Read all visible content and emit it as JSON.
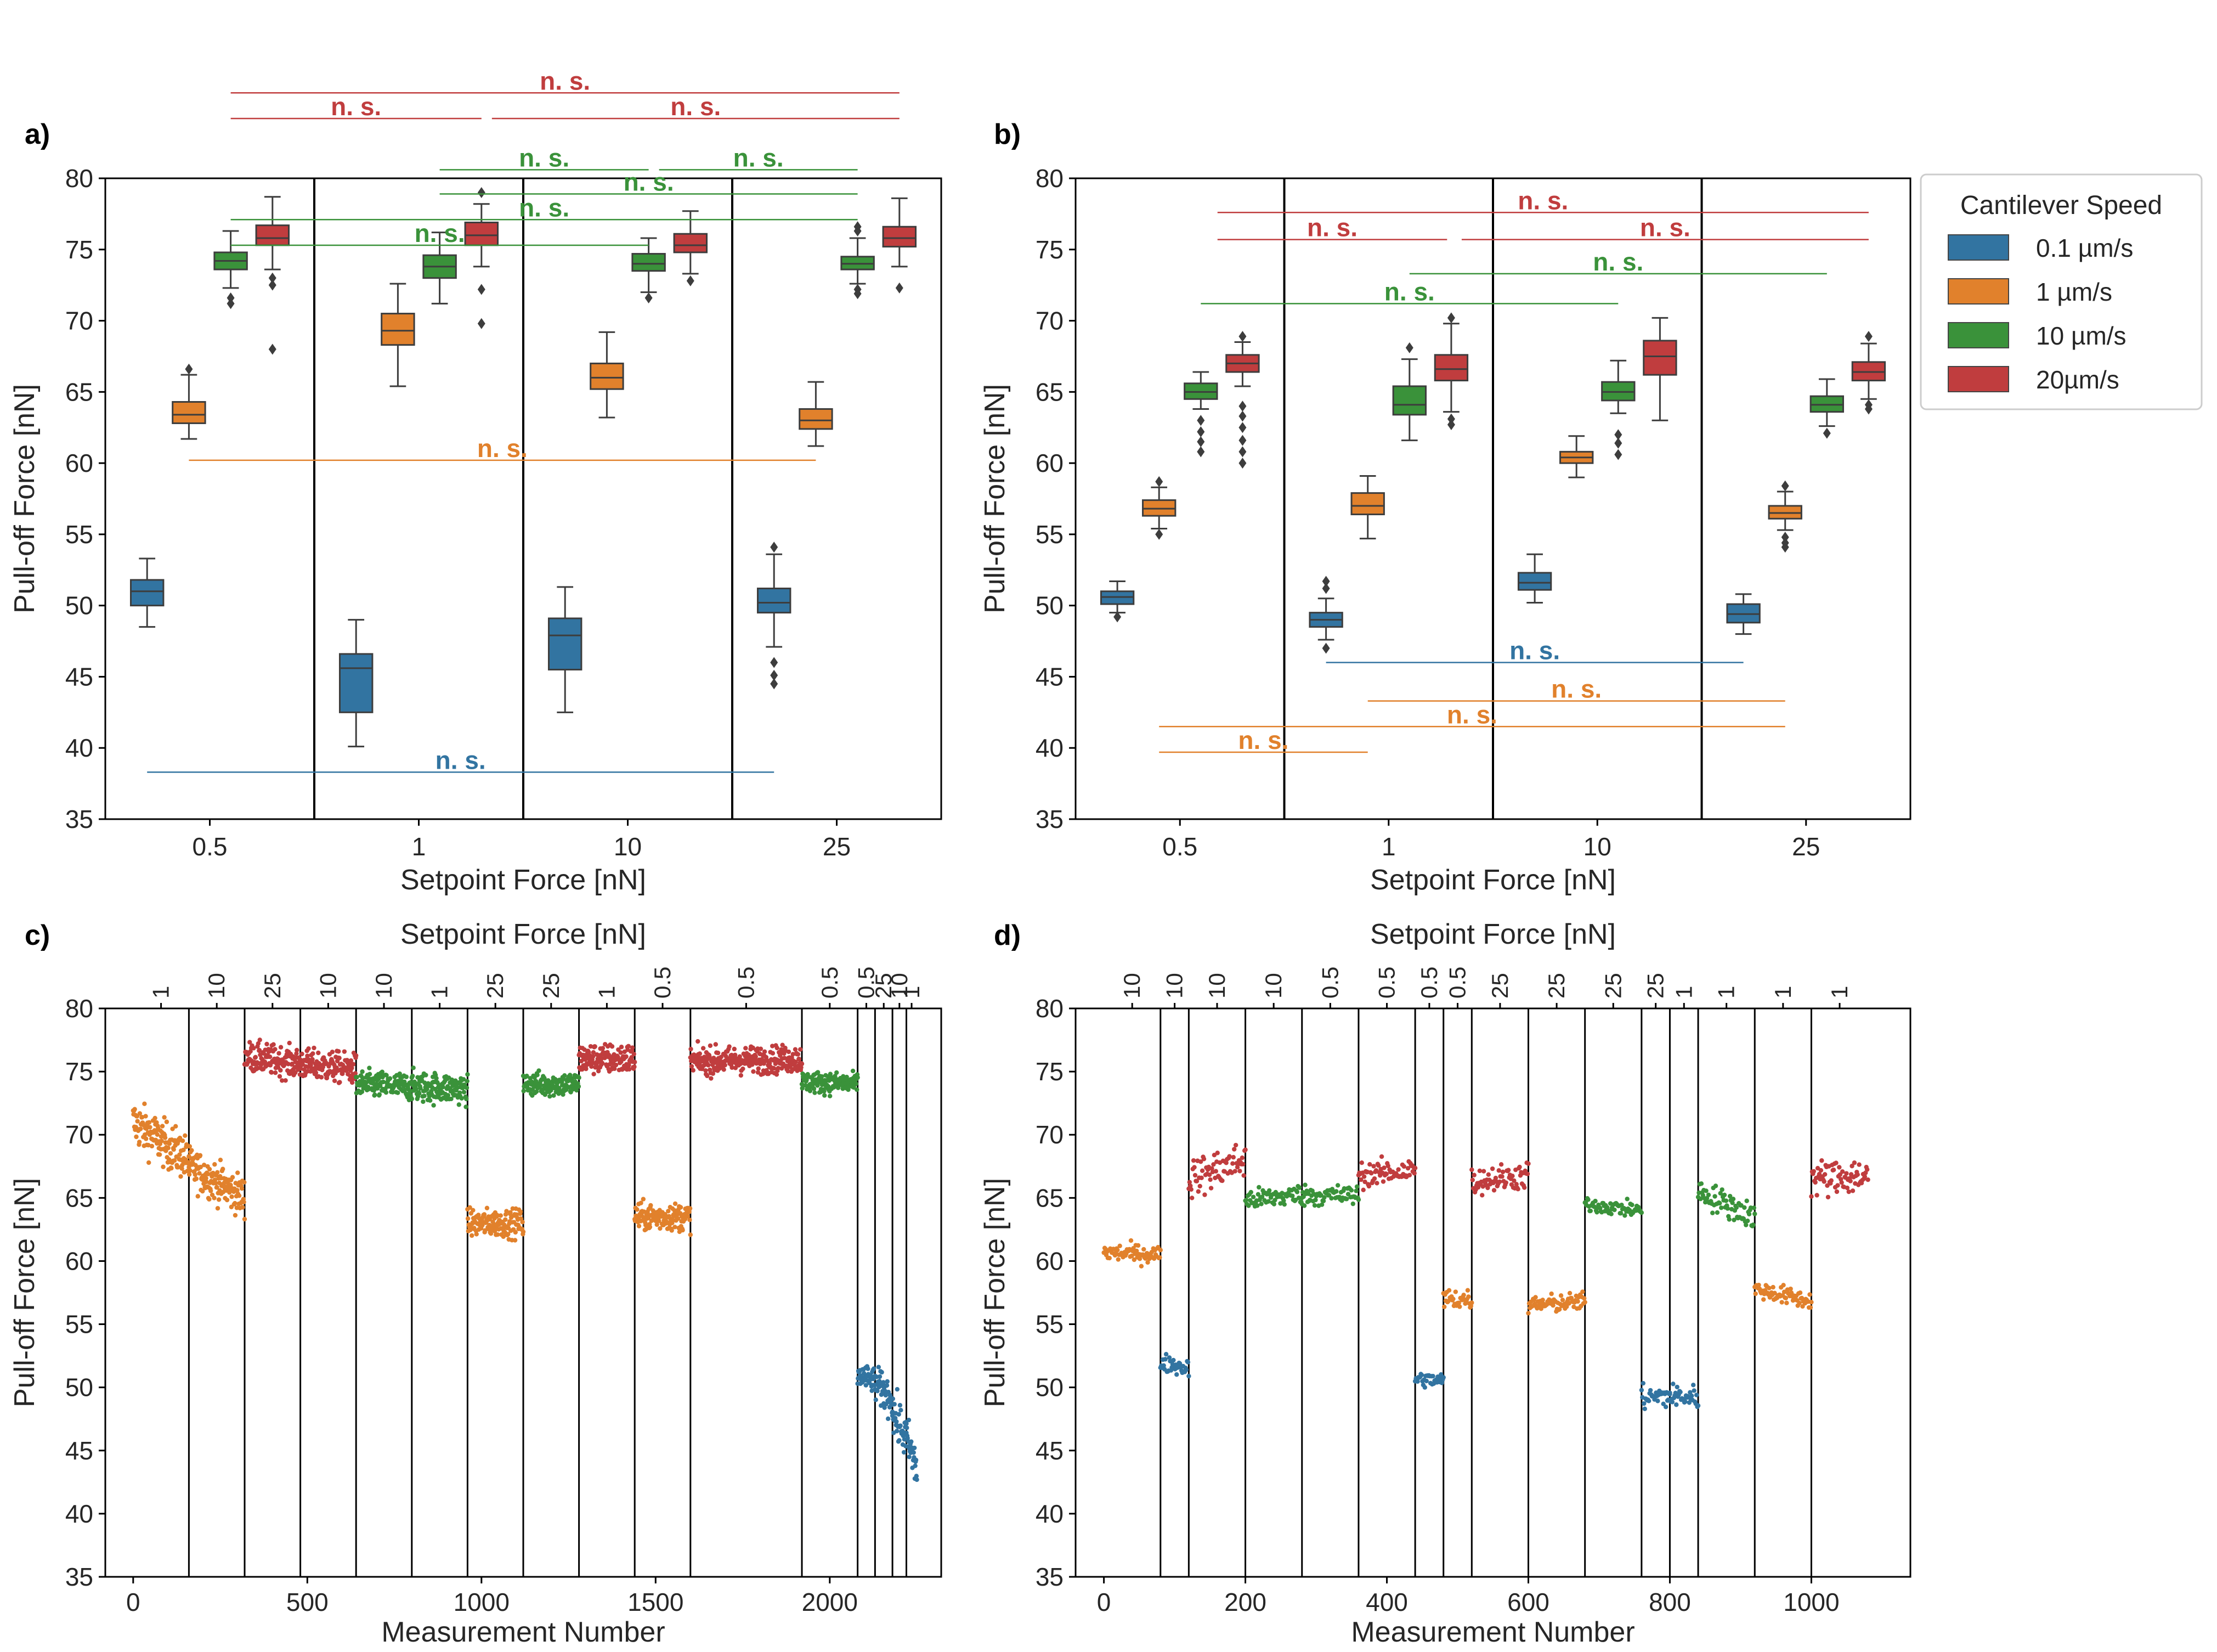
{
  "colors": {
    "c01": "#3274a1",
    "c1": "#e1812c",
    "c10": "#3a923a",
    "c20": "#c03d3e",
    "axis": "#000000",
    "text": "#262626"
  },
  "legend": {
    "title": "Cantilever Speed",
    "items": [
      {
        "label": "0.1 µm/s",
        "color": "#3274a1"
      },
      {
        "label": "1 µm/s",
        "color": "#e1812c"
      },
      {
        "label": "10 µm/s",
        "color": "#3a923a"
      },
      {
        "label": "20µm/s",
        "color": "#c03d3e"
      }
    ]
  },
  "chart_data": [
    {
      "panel": "a)",
      "type": "box",
      "xlabel": "Setpoint Force [nN]",
      "ylabel": "Pull-off Force [nN]",
      "ylim": [
        35,
        80
      ],
      "yticks": [
        35,
        40,
        45,
        50,
        55,
        60,
        65,
        70,
        75,
        80
      ],
      "categories": [
        "0.5",
        "1",
        "10",
        "25"
      ],
      "boxes": [
        {
          "cat": 0,
          "speed": "0.1",
          "q1": 50.0,
          "med": 51.0,
          "q3": 51.8,
          "wlo": 48.5,
          "whi": 53.3,
          "fliers": []
        },
        {
          "cat": 0,
          "speed": "1",
          "q1": 62.8,
          "med": 63.4,
          "q3": 64.3,
          "wlo": 61.7,
          "whi": 66.2,
          "fliers": [
            66.6
          ]
        },
        {
          "cat": 0,
          "speed": "10",
          "q1": 73.6,
          "med": 74.2,
          "q3": 74.8,
          "wlo": 72.3,
          "whi": 76.3,
          "fliers": [
            71.6,
            71.2
          ]
        },
        {
          "cat": 0,
          "speed": "20",
          "q1": 75.3,
          "med": 75.8,
          "q3": 76.7,
          "wlo": 73.6,
          "whi": 78.7,
          "fliers": [
            73.0,
            72.5,
            68.0
          ]
        },
        {
          "cat": 1,
          "speed": "0.1",
          "q1": 42.5,
          "med": 45.6,
          "q3": 46.6,
          "wlo": 40.1,
          "whi": 49.0,
          "fliers": []
        },
        {
          "cat": 1,
          "speed": "1",
          "q1": 68.3,
          "med": 69.3,
          "q3": 70.5,
          "wlo": 65.4,
          "whi": 72.6,
          "fliers": []
        },
        {
          "cat": 1,
          "speed": "10",
          "q1": 73.0,
          "med": 73.8,
          "q3": 74.6,
          "wlo": 71.2,
          "whi": 76.2,
          "fliers": []
        },
        {
          "cat": 1,
          "speed": "20",
          "q1": 75.3,
          "med": 76.0,
          "q3": 76.9,
          "wlo": 73.8,
          "whi": 78.2,
          "fliers": [
            79.0,
            72.2,
            69.8
          ]
        },
        {
          "cat": 2,
          "speed": "0.1",
          "q1": 45.5,
          "med": 47.9,
          "q3": 49.1,
          "wlo": 42.5,
          "whi": 51.3,
          "fliers": []
        },
        {
          "cat": 2,
          "speed": "1",
          "q1": 65.2,
          "med": 66.0,
          "q3": 67.0,
          "wlo": 63.2,
          "whi": 69.2,
          "fliers": []
        },
        {
          "cat": 2,
          "speed": "10",
          "q1": 73.5,
          "med": 74.0,
          "q3": 74.7,
          "wlo": 72.0,
          "whi": 75.8,
          "fliers": [
            71.6
          ]
        },
        {
          "cat": 2,
          "speed": "20",
          "q1": 74.8,
          "med": 75.3,
          "q3": 76.1,
          "wlo": 73.3,
          "whi": 77.7,
          "fliers": [
            72.8
          ]
        },
        {
          "cat": 3,
          "speed": "0.1",
          "q1": 49.5,
          "med": 50.2,
          "q3": 51.2,
          "wlo": 47.1,
          "whi": 53.6,
          "fliers": [
            54.1,
            46.0,
            45.1,
            44.5
          ]
        },
        {
          "cat": 3,
          "speed": "1",
          "q1": 62.4,
          "med": 63.0,
          "q3": 63.8,
          "wlo": 61.2,
          "whi": 65.7,
          "fliers": []
        },
        {
          "cat": 3,
          "speed": "10",
          "q1": 73.6,
          "med": 74.0,
          "q3": 74.5,
          "wlo": 72.6,
          "whi": 75.8,
          "fliers": [
            76.3,
            76.6,
            72.2,
            71.9
          ]
        },
        {
          "cat": 3,
          "speed": "20",
          "q1": 75.2,
          "med": 75.8,
          "q3": 76.6,
          "wlo": 73.8,
          "whi": 78.6,
          "fliers": [
            72.3
          ]
        }
      ],
      "annotations": [
        {
          "text": "n. s.",
          "color": "c20",
          "y": 86.0,
          "x1": 0.1,
          "x2": 3.3
        },
        {
          "text": "n. s.",
          "color": "c20",
          "y": 84.2,
          "x1": 0.1,
          "x2": 1.3
        },
        {
          "text": "n. s.",
          "color": "c20",
          "y": 84.2,
          "x1": 1.35,
          "x2": 3.3
        },
        {
          "text": "n. s.",
          "color": "c10",
          "y": 80.6,
          "x1": 1.1,
          "x2": 2.1
        },
        {
          "text": "n. s.",
          "color": "c10",
          "y": 80.6,
          "x1": 2.15,
          "x2": 3.1
        },
        {
          "text": "n. s.",
          "color": "c10",
          "y": 78.9,
          "x1": 1.1,
          "x2": 3.1
        },
        {
          "text": "n. s.",
          "color": "c10",
          "y": 77.1,
          "x1": 0.1,
          "x2": 3.1
        },
        {
          "text": "n. s.",
          "color": "c10",
          "y": 75.3,
          "x1": 0.1,
          "x2": 2.1
        },
        {
          "text": "n. s.",
          "color": "c1",
          "y": 60.2,
          "x1": -0.1,
          "x2": 2.9
        },
        {
          "text": "n. s.",
          "color": "c01",
          "y": 38.3,
          "x1": -0.3,
          "x2": 2.7
        }
      ]
    },
    {
      "panel": "b)",
      "type": "box",
      "xlabel": "Setpoint Force [nN]",
      "ylabel": "Pull-off Force [nN]",
      "ylim": [
        35,
        80
      ],
      "yticks": [
        35,
        40,
        45,
        50,
        55,
        60,
        65,
        70,
        75,
        80
      ],
      "categories": [
        "0.5",
        "1",
        "10",
        "25"
      ],
      "boxes": [
        {
          "cat": 0,
          "speed": "0.1",
          "q1": 50.1,
          "med": 50.6,
          "q3": 51.0,
          "wlo": 49.5,
          "whi": 51.7,
          "fliers": [
            49.2
          ]
        },
        {
          "cat": 0,
          "speed": "1",
          "q1": 56.3,
          "med": 56.8,
          "q3": 57.4,
          "wlo": 55.4,
          "whi": 58.3,
          "fliers": [
            58.7,
            55.0
          ]
        },
        {
          "cat": 0,
          "speed": "10",
          "q1": 64.5,
          "med": 65.0,
          "q3": 65.6,
          "wlo": 63.8,
          "whi": 66.4,
          "fliers": [
            63.0,
            62.2,
            61.5,
            60.8
          ]
        },
        {
          "cat": 0,
          "speed": "20",
          "q1": 66.4,
          "med": 67.0,
          "q3": 67.6,
          "wlo": 65.4,
          "whi": 68.5,
          "fliers": [
            68.9,
            64.0,
            63.3,
            62.5,
            61.6,
            60.8,
            60.0
          ]
        },
        {
          "cat": 1,
          "speed": "0.1",
          "q1": 48.5,
          "med": 49.0,
          "q3": 49.5,
          "wlo": 47.6,
          "whi": 50.5,
          "fliers": [
            51.2,
            51.7,
            47.0
          ]
        },
        {
          "cat": 1,
          "speed": "1",
          "q1": 56.4,
          "med": 57.0,
          "q3": 57.9,
          "wlo": 54.7,
          "whi": 59.1,
          "fliers": []
        },
        {
          "cat": 1,
          "speed": "10",
          "q1": 63.4,
          "med": 64.1,
          "q3": 65.4,
          "wlo": 61.6,
          "whi": 67.3,
          "fliers": [
            68.1
          ]
        },
        {
          "cat": 1,
          "speed": "20",
          "q1": 65.8,
          "med": 66.6,
          "q3": 67.6,
          "wlo": 63.6,
          "whi": 69.8,
          "fliers": [
            70.2,
            63.1,
            62.7
          ]
        },
        {
          "cat": 2,
          "speed": "0.1",
          "q1": 51.1,
          "med": 51.6,
          "q3": 52.3,
          "wlo": 50.2,
          "whi": 53.6,
          "fliers": []
        },
        {
          "cat": 2,
          "speed": "1",
          "q1": 60.0,
          "med": 60.4,
          "q3": 60.8,
          "wlo": 59.0,
          "whi": 61.9,
          "fliers": []
        },
        {
          "cat": 2,
          "speed": "10",
          "q1": 64.4,
          "med": 65.0,
          "q3": 65.7,
          "wlo": 63.5,
          "whi": 67.2,
          "fliers": [
            62.0,
            61.4,
            60.6
          ]
        },
        {
          "cat": 2,
          "speed": "20",
          "q1": 66.2,
          "med": 67.5,
          "q3": 68.6,
          "wlo": 63.0,
          "whi": 70.2,
          "fliers": []
        },
        {
          "cat": 3,
          "speed": "0.1",
          "q1": 48.8,
          "med": 49.4,
          "q3": 50.1,
          "wlo": 48.0,
          "whi": 50.8,
          "fliers": []
        },
        {
          "cat": 3,
          "speed": "1",
          "q1": 56.1,
          "med": 56.5,
          "q3": 57.0,
          "wlo": 55.3,
          "whi": 58.0,
          "fliers": [
            58.4,
            54.8,
            54.4,
            54.1
          ]
        },
        {
          "cat": 3,
          "speed": "10",
          "q1": 63.6,
          "med": 64.1,
          "q3": 64.7,
          "wlo": 62.6,
          "whi": 65.9,
          "fliers": [
            62.1
          ]
        },
        {
          "cat": 3,
          "speed": "20",
          "q1": 65.8,
          "med": 66.4,
          "q3": 67.1,
          "wlo": 64.5,
          "whi": 68.4,
          "fliers": [
            68.9,
            64.1,
            63.8
          ]
        }
      ],
      "annotations": [
        {
          "text": "n. s.",
          "color": "c20",
          "y": 77.6,
          "x1": 0.18,
          "x2": 3.3
        },
        {
          "text": "n. s.",
          "color": "c20",
          "y": 75.7,
          "x1": 0.18,
          "x2": 1.28
        },
        {
          "text": "n. s.",
          "color": "c20",
          "y": 75.7,
          "x1": 1.35,
          "x2": 3.3
        },
        {
          "text": "n. s.",
          "color": "c10",
          "y": 73.3,
          "x1": 1.1,
          "x2": 3.1
        },
        {
          "text": "n. s.",
          "color": "c10",
          "y": 71.2,
          "x1": 0.1,
          "x2": 2.1
        },
        {
          "text": "n. s.",
          "color": "c01",
          "y": 46.0,
          "x1": 0.7,
          "x2": 2.7
        },
        {
          "text": "n. s.",
          "color": "c1",
          "y": 43.3,
          "x1": 0.9,
          "x2": 2.9
        },
        {
          "text": "n. s.",
          "color": "c1",
          "y": 41.5,
          "x1": -0.1,
          "x2": 2.9
        },
        {
          "text": "n. s.",
          "color": "c1",
          "y": 39.7,
          "x1": -0.1,
          "x2": 0.9
        }
      ]
    },
    {
      "panel": "c)",
      "type": "scatter",
      "xlabel": "Measurement Number",
      "ylabel": "Pull-off Force [nN]",
      "top_xlabel": "Setpoint Force [nN]",
      "xlim": [
        -80,
        2320
      ],
      "ylim": [
        35,
        80
      ],
      "xticks": [
        0,
        500,
        1000,
        1500,
        2000
      ],
      "yticks": [
        35,
        40,
        45,
        50,
        55,
        60,
        65,
        70,
        75,
        80
      ],
      "segments": [
        {
          "start": 0,
          "end": 160,
          "speed": "1",
          "label": "1",
          "mean_start": 71.0,
          "mean_end": 68.0,
          "spread": 1.5
        },
        {
          "start": 160,
          "end": 320,
          "speed": "1",
          "label": "10",
          "mean_start": 67.5,
          "mean_end": 65.0,
          "spread": 1.3
        },
        {
          "start": 320,
          "end": 480,
          "speed": "20",
          "label": "25",
          "mean_start": 76.2,
          "mean_end": 75.6,
          "spread": 1.0
        },
        {
          "start": 480,
          "end": 640,
          "speed": "20",
          "label": "10",
          "mean_start": 75.6,
          "mean_end": 75.2,
          "spread": 1.0
        },
        {
          "start": 640,
          "end": 800,
          "speed": "10",
          "label": "10",
          "mean_start": 74.0,
          "mean_end": 73.8,
          "spread": 0.9
        },
        {
          "start": 800,
          "end": 960,
          "speed": "10",
          "label": "1",
          "mean_start": 73.8,
          "mean_end": 73.6,
          "spread": 1.0
        },
        {
          "start": 960,
          "end": 1120,
          "speed": "1",
          "label": "25",
          "mean_start": 63.0,
          "mean_end": 63.0,
          "spread": 0.9
        },
        {
          "start": 1120,
          "end": 1280,
          "speed": "10",
          "label": "25",
          "mean_start": 74.0,
          "mean_end": 74.0,
          "spread": 0.8
        },
        {
          "start": 1280,
          "end": 1440,
          "speed": "20",
          "label": "1",
          "mean_start": 76.0,
          "mean_end": 76.0,
          "spread": 1.0
        },
        {
          "start": 1440,
          "end": 1600,
          "speed": "1",
          "label": "0.5",
          "mean_start": 63.5,
          "mean_end": 63.5,
          "spread": 0.9
        },
        {
          "start": 1600,
          "end": 1920,
          "speed": "20",
          "label": "0.5",
          "mean_start": 75.8,
          "mean_end": 76.0,
          "spread": 0.9
        },
        {
          "start": 1920,
          "end": 2080,
          "speed": "10",
          "label": "0.5",
          "mean_start": 74.2,
          "mean_end": 74.0,
          "spread": 0.7
        },
        {
          "start": 2080,
          "end": 2130,
          "speed": "0.1",
          "label": "0.5",
          "mean_start": 51.0,
          "mean_end": 50.5,
          "spread": 0.8
        },
        {
          "start": 2130,
          "end": 2180,
          "speed": "0.1",
          "label": "25",
          "mean_start": 50.3,
          "mean_end": 49.0,
          "spread": 1.2
        },
        {
          "start": 2180,
          "end": 2220,
          "speed": "0.1",
          "label": "10",
          "mean_start": 48.0,
          "mean_end": 46.0,
          "spread": 1.5
        },
        {
          "start": 2220,
          "end": 2250,
          "speed": "0.1",
          "label": "1",
          "mean_start": 46.0,
          "mean_end": 43.5,
          "spread": 1.5
        }
      ]
    },
    {
      "panel": "d)",
      "type": "scatter",
      "xlabel": "Measurement Number",
      "ylabel": "Pull-off Force [nN]",
      "top_xlabel": "Setpoint Force [nN]",
      "xlim": [
        -40,
        1140
      ],
      "ylim": [
        35,
        80
      ],
      "xticks": [
        0,
        200,
        400,
        600,
        800,
        1000
      ],
      "yticks": [
        35,
        40,
        45,
        50,
        55,
        60,
        65,
        70,
        75,
        80
      ],
      "segments": [
        {
          "start": 0,
          "end": 80,
          "speed": "1",
          "label": "10",
          "mean_start": 60.7,
          "mean_end": 60.5,
          "spread": 0.6
        },
        {
          "start": 80,
          "end": 120,
          "speed": "0.1",
          "label": "10",
          "mean_start": 52.0,
          "mean_end": 51.5,
          "spread": 0.6
        },
        {
          "start": 120,
          "end": 200,
          "speed": "20",
          "label": "10",
          "mean_start": 66.5,
          "mean_end": 68.0,
          "spread": 1.3
        },
        {
          "start": 200,
          "end": 280,
          "speed": "10",
          "label": "10",
          "mean_start": 64.8,
          "mean_end": 65.3,
          "spread": 0.7
        },
        {
          "start": 280,
          "end": 360,
          "speed": "10",
          "label": "0.5",
          "mean_start": 65.2,
          "mean_end": 65.2,
          "spread": 0.7
        },
        {
          "start": 360,
          "end": 440,
          "speed": "20",
          "label": "0.5",
          "mean_start": 66.8,
          "mean_end": 67.2,
          "spread": 0.8
        },
        {
          "start": 440,
          "end": 480,
          "speed": "0.1",
          "label": "0.5",
          "mean_start": 50.7,
          "mean_end": 50.5,
          "spread": 0.5
        },
        {
          "start": 480,
          "end": 520,
          "speed": "1",
          "label": "0.5",
          "mean_start": 57.0,
          "mean_end": 57.0,
          "spread": 0.7
        },
        {
          "start": 520,
          "end": 600,
          "speed": "20",
          "label": "25",
          "mean_start": 66.3,
          "mean_end": 66.8,
          "spread": 0.9
        },
        {
          "start": 600,
          "end": 680,
          "speed": "1",
          "label": "25",
          "mean_start": 56.5,
          "mean_end": 56.8,
          "spread": 0.6
        },
        {
          "start": 680,
          "end": 760,
          "speed": "10",
          "label": "25",
          "mean_start": 64.5,
          "mean_end": 64.0,
          "spread": 0.5
        },
        {
          "start": 760,
          "end": 800,
          "speed": "0.1",
          "label": "25",
          "mean_start": 49.2,
          "mean_end": 49.3,
          "spread": 0.8
        },
        {
          "start": 800,
          "end": 840,
          "speed": "0.1",
          "label": "1",
          "mean_start": 49.3,
          "mean_end": 49.2,
          "spread": 0.8
        },
        {
          "start": 840,
          "end": 920,
          "speed": "10",
          "label": "1",
          "mean_start": 65.5,
          "mean_end": 63.5,
          "spread": 0.9
        },
        {
          "start": 920,
          "end": 1000,
          "speed": "1",
          "label": "1",
          "mean_start": 57.8,
          "mean_end": 56.8,
          "spread": 0.6
        },
        {
          "start": 1000,
          "end": 1080,
          "speed": "20",
          "label": "1",
          "mean_start": 66.5,
          "mean_end": 66.8,
          "spread": 1.2
        }
      ]
    }
  ]
}
